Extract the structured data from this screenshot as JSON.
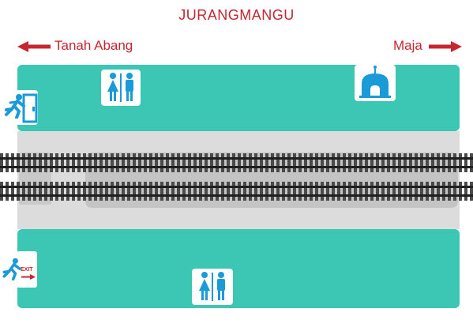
{
  "station_name": "JURANGMANGU",
  "directions": {
    "left": "Tanah Abang",
    "right": "Maja"
  },
  "exit_sign_text": "EXIT",
  "icons": {
    "exit_top": "emergency-exit-icon",
    "toilet_top": "toilet-icon",
    "mosque": "mosque-icon",
    "exit_bottom": "emergency-exit-icon",
    "toilet_bottom": "toilet-icon",
    "arrow_left": "arrow-left-icon",
    "arrow_right": "arrow-right-icon"
  },
  "colors": {
    "platform": "#3cc7b4",
    "accent_red": "#c4272f",
    "icon_blue": "#1a9ad6",
    "trackbed": "#dcdcdc",
    "rail": "#333333"
  }
}
